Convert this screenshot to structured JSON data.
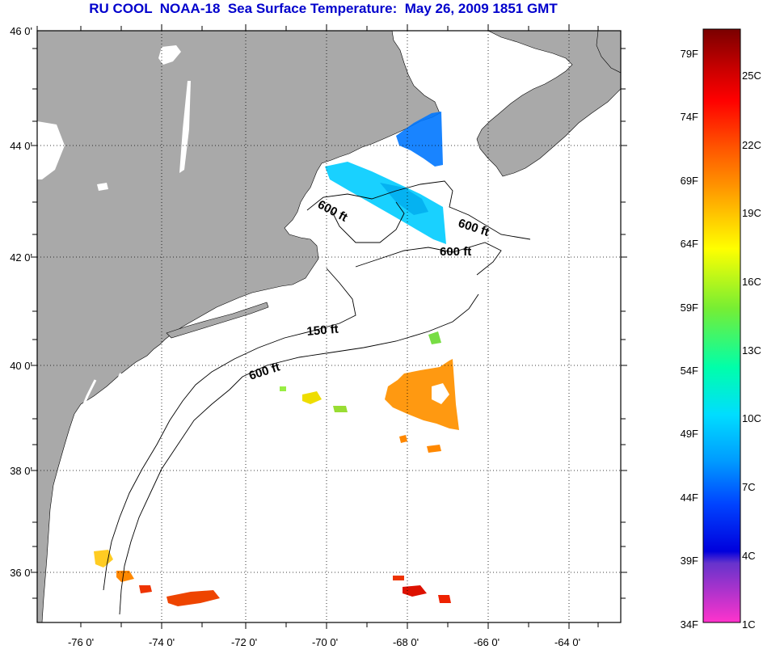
{
  "title": "RU COOL  NOAA-18  Sea Surface Temperature:  May 26, 2009 1851 GMT",
  "lat_labels": [
    "46 0'",
    "44 0'",
    "42 0'",
    "40 0'",
    "38 0'",
    "36 0'"
  ],
  "lon_labels": [
    "-76 0'",
    "-74 0'",
    "-72 0'",
    "-70 0'",
    "-68 0'",
    "-66 0'",
    "-64 0'"
  ],
  "contour_labels": {
    "c1": "600 ft",
    "c2": "600 ft",
    "c3": "600 ft",
    "c4": "150 ft",
    "c5": "600 ft"
  },
  "colorbar": {
    "fahrenheit": [
      "79F",
      "74F",
      "69F",
      "64F",
      "59F",
      "54F",
      "49F",
      "44F",
      "39F",
      "34F"
    ],
    "celsius": [
      "25C",
      "22C",
      "19C",
      "16C",
      "13C",
      "10C",
      "7C",
      "4C",
      "1C"
    ]
  },
  "colors": {
    "land": "#a9a9a9",
    "ocean": "#ffffff",
    "title": "#0000cc",
    "grid": "#000000"
  }
}
